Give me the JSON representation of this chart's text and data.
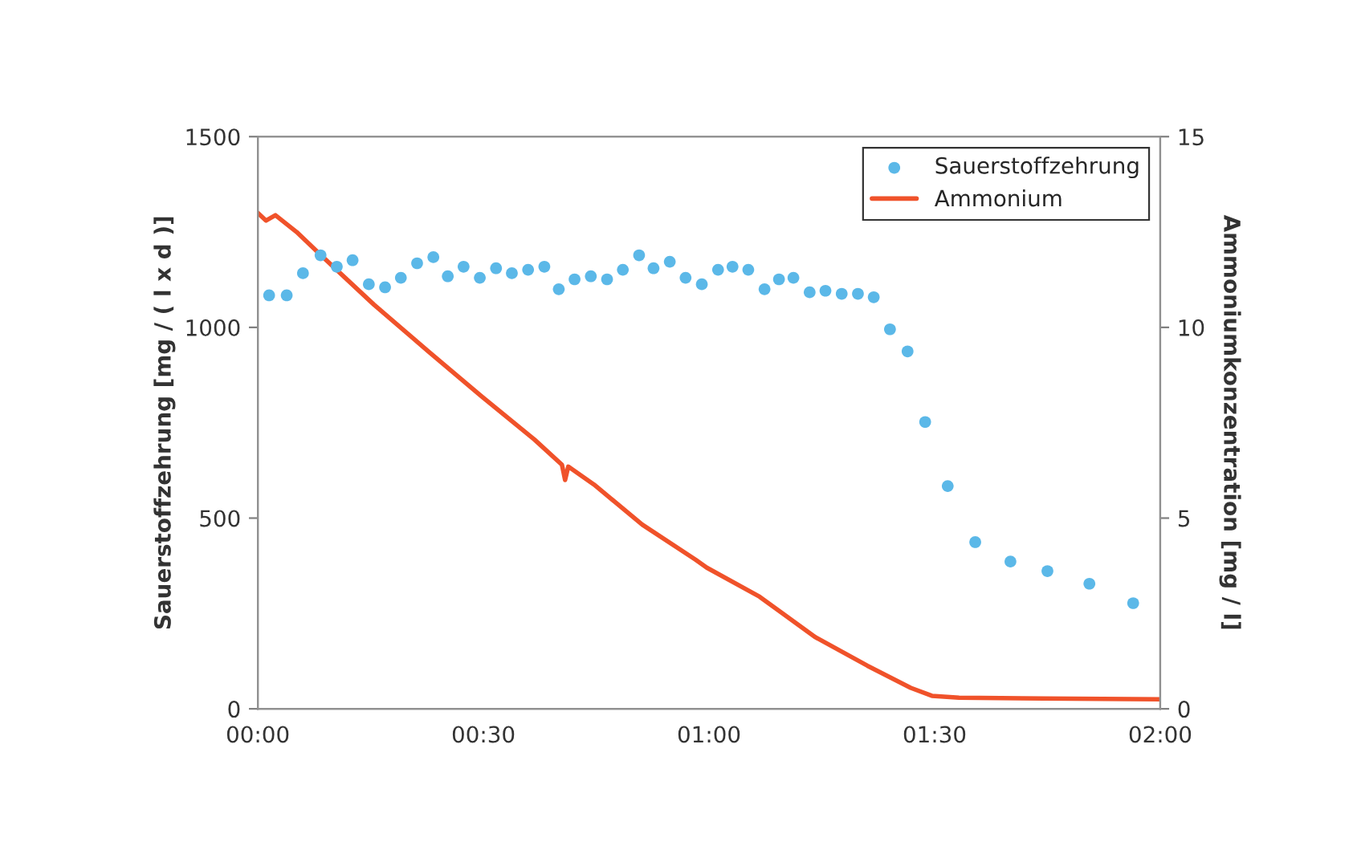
{
  "chart_data": {
    "type": "scatter",
    "ylabel": "Sauerstoffzehrung [mg / ( l x d )]",
    "y2label": "Ammoniumkonzentration [mg / l]",
    "xlim": [
      0,
      2
    ],
    "xticks": [
      {
        "value": 0,
        "label": "00:00"
      },
      {
        "value": 0.5,
        "label": "00:30"
      },
      {
        "value": 1,
        "label": "01:00"
      },
      {
        "value": 1.5,
        "label": "01:30"
      },
      {
        "value": 2,
        "label": "02:00"
      }
    ],
    "ylim": [
      0,
      1500
    ],
    "yticks": [
      0,
      500,
      1000,
      1500
    ],
    "y2lim": [
      0,
      15
    ],
    "y2ticks": [
      0,
      5,
      10,
      15
    ],
    "grid": false,
    "legend": "top right",
    "series": [
      {
        "name": "Sauerstoffzehrung",
        "marker": "circle",
        "color": "#5bb8e8",
        "x": [
          0.025,
          0.064,
          0.1,
          0.139,
          0.175,
          0.21,
          0.246,
          0.282,
          0.317,
          0.353,
          0.389,
          0.421,
          0.456,
          0.492,
          0.528,
          0.563,
          0.599,
          0.635,
          0.667,
          0.702,
          0.738,
          0.774,
          0.809,
          0.845,
          0.877,
          0.913,
          0.948,
          0.984,
          1.02,
          1.052,
          1.087,
          1.123,
          1.155,
          1.187,
          1.223,
          1.258,
          1.294,
          1.33,
          1.365,
          1.401,
          1.44,
          1.479,
          1.529,
          1.59,
          1.668,
          1.75,
          1.843,
          1.94
        ],
        "values": [
          1084,
          1084,
          1142,
          1189,
          1159,
          1176,
          1113,
          1105,
          1130,
          1168,
          1184,
          1134,
          1159,
          1130,
          1155,
          1142,
          1151,
          1159,
          1100,
          1126,
          1134,
          1126,
          1151,
          1189,
          1155,
          1172,
          1130,
          1113,
          1151,
          1159,
          1151,
          1100,
          1126,
          1130,
          1092,
          1096,
          1088,
          1088,
          1079,
          995,
          937,
          752,
          584,
          437,
          386,
          361,
          328,
          277
        ]
      },
      {
        "name": "Ammonium",
        "type": "line",
        "axis": "y2",
        "marker": "none",
        "line_style": "solid",
        "color": "#f0522a",
        "x": [
          0,
          0.018,
          0.039,
          0.086,
          0.139,
          0.257,
          0.378,
          0.496,
          0.613,
          0.674,
          0.681,
          0.688,
          0.745,
          0.852,
          0.97,
          0.995,
          1.112,
          1.234,
          1.351,
          1.447,
          1.494,
          1.554,
          1.743,
          2.0
        ],
        "values": [
          13.0,
          12.8,
          12.94,
          12.5,
          11.9,
          10.6,
          9.37,
          8.19,
          7.06,
          6.4,
          6.0,
          6.35,
          5.88,
          4.83,
          3.91,
          3.7,
          2.94,
          1.89,
          1.13,
          0.55,
          0.34,
          0.29,
          0.27,
          0.25
        ]
      }
    ]
  }
}
